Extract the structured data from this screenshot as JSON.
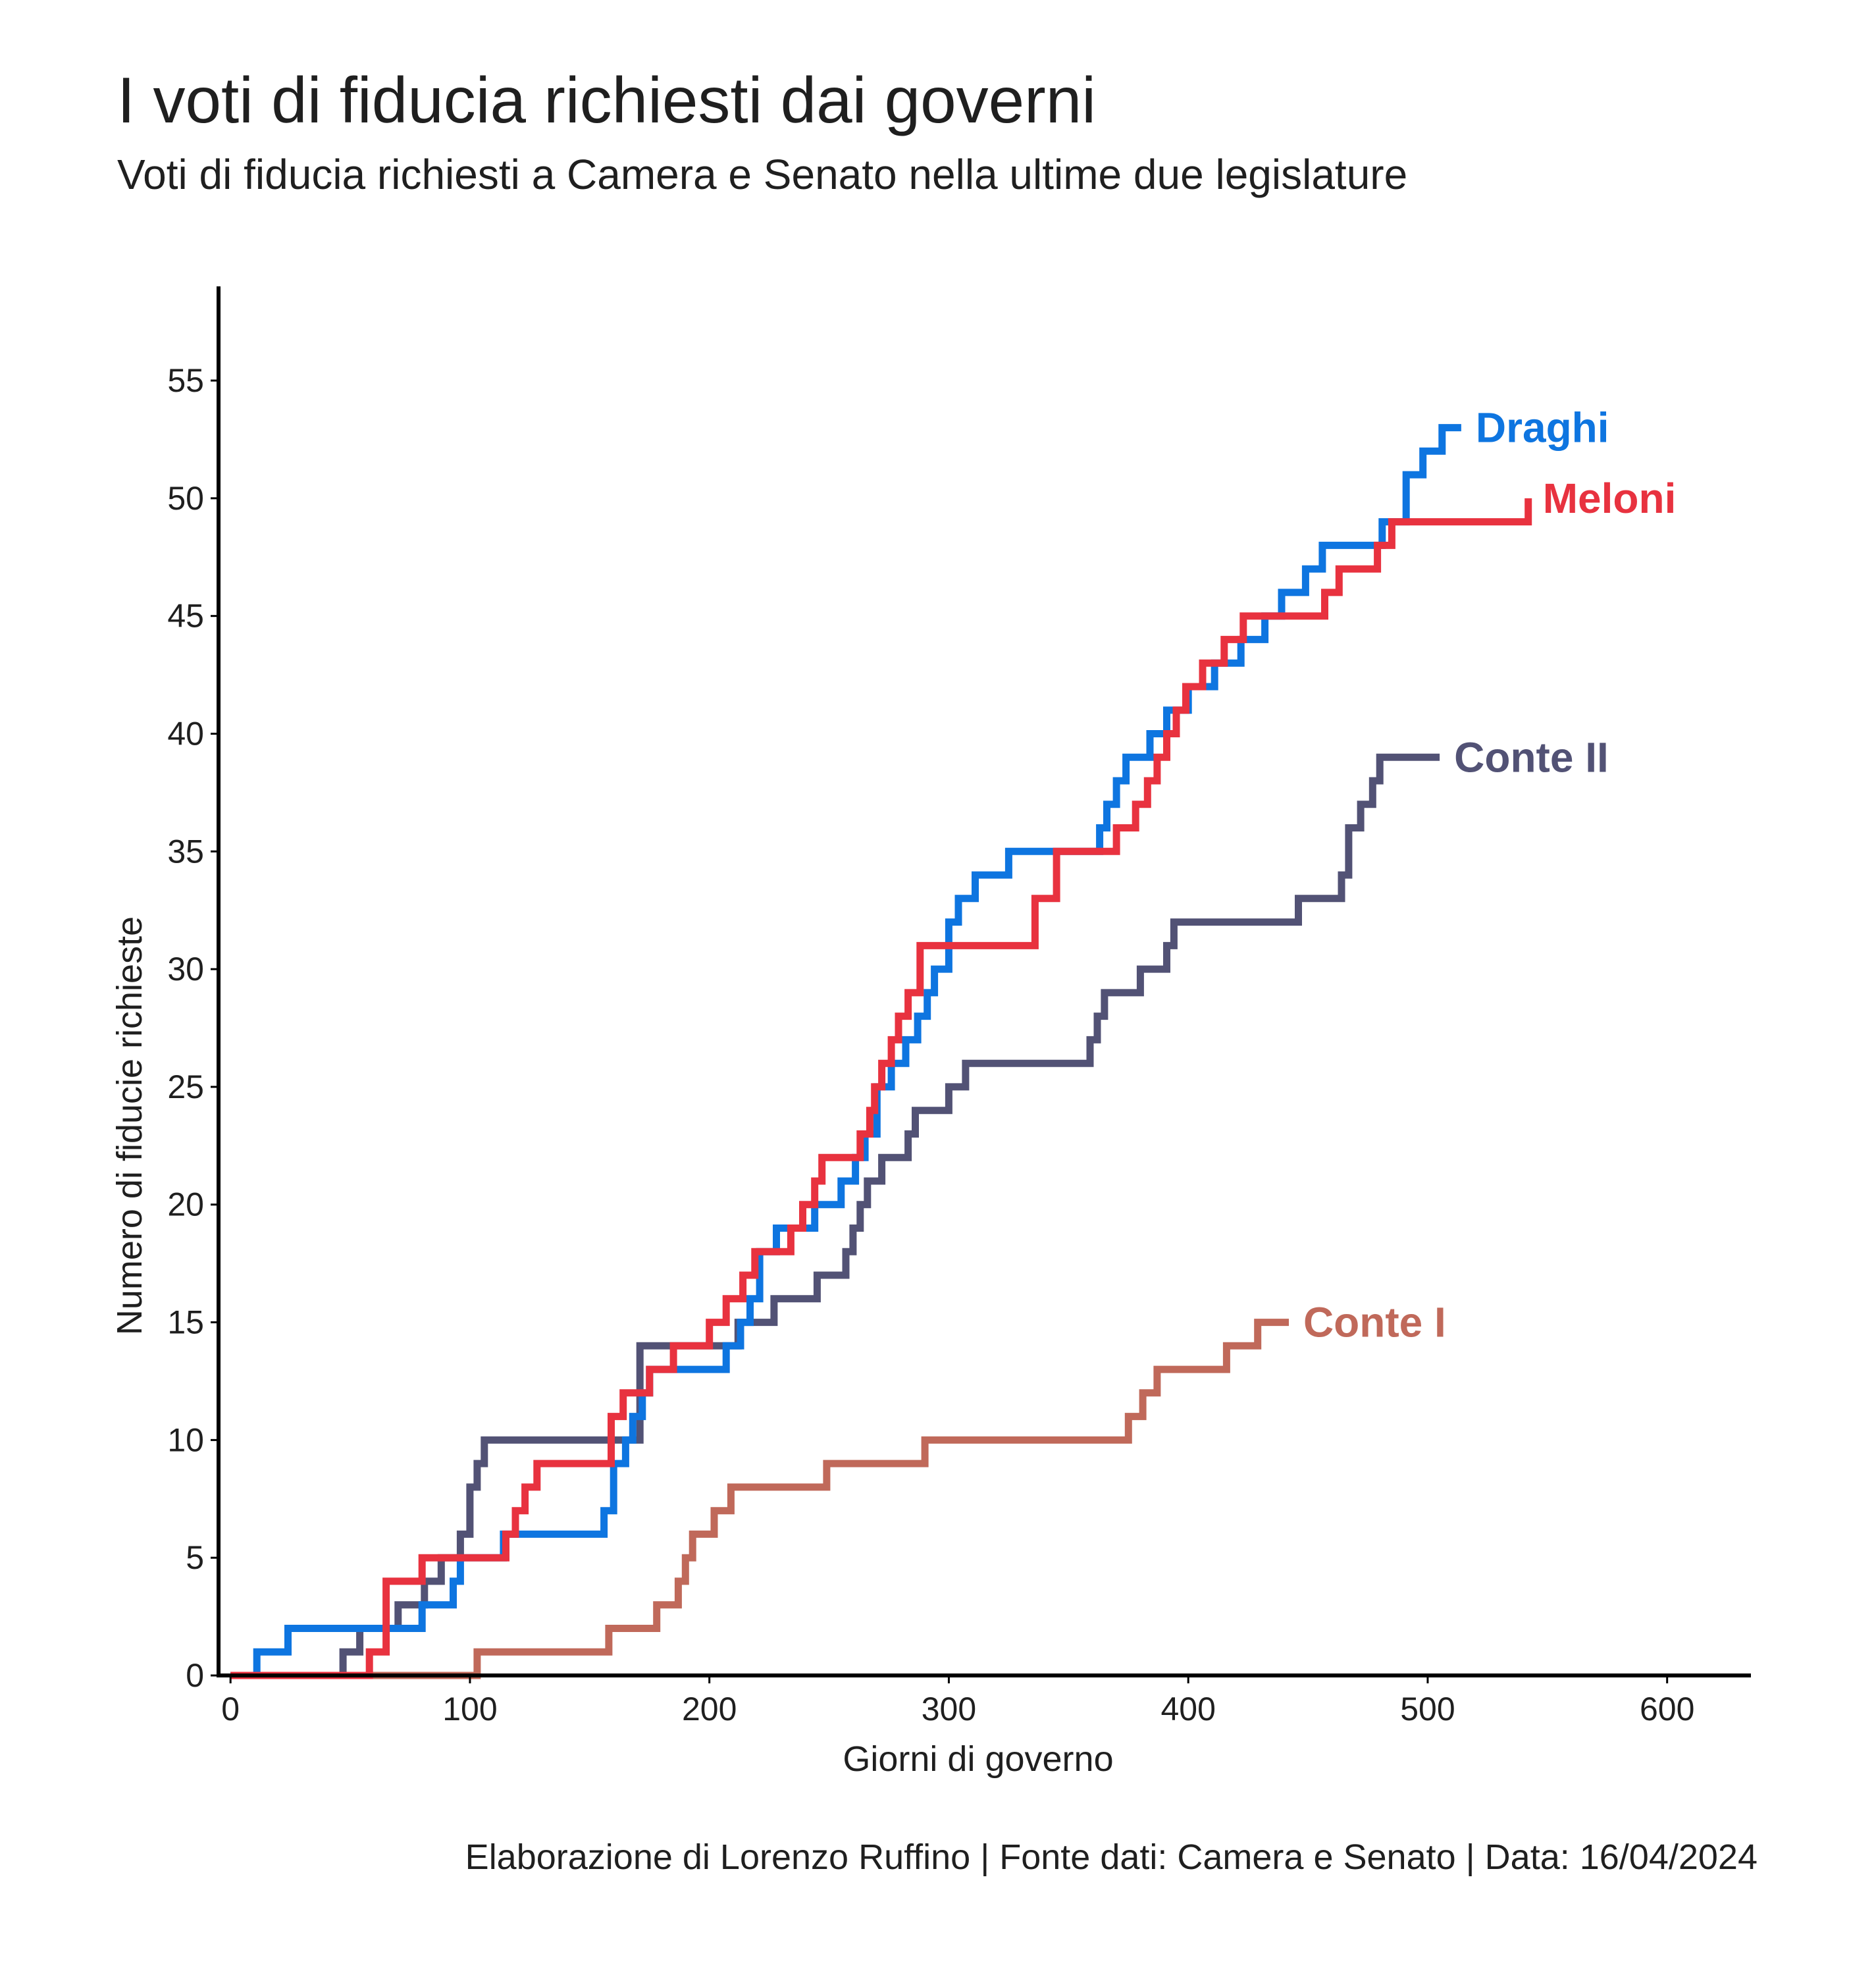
{
  "chart_data": {
    "type": "line",
    "title": "I voti di fiducia richiesti dai governi",
    "subtitle": "Voti di fiducia richiesti a Camera e Senato nella ultime due legislature",
    "xlabel": "Giorni di governo",
    "ylabel": "Numero di fiducie richieste",
    "xlim": [
      -5,
      635
    ],
    "ylim": [
      0,
      59
    ],
    "x_ticks": [
      0,
      100,
      200,
      300,
      400,
      500,
      600
    ],
    "y_ticks": [
      0,
      5,
      10,
      15,
      20,
      25,
      30,
      35,
      40,
      45,
      50,
      55
    ],
    "grid": false,
    "legend": "direct labels at line ends",
    "caption": "Elaborazione di Lorenzo Ruffino | Fonte dati: Camera e Senato | Data: 16/04/2024",
    "series": [
      {
        "name": "Conte I",
        "color": "#c0695a",
        "x": [
          0,
          102,
          103,
          157,
          158,
          177,
          178,
          186,
          187,
          189,
          190,
          192,
          193,
          201,
          202,
          203,
          204,
          208,
          209,
          248,
          249,
          289,
          290,
          374,
          375,
          380,
          381,
          386,
          387,
          391,
          392,
          415,
          416,
          428,
          429,
          442
        ],
        "y": [
          0,
          0,
          1,
          1,
          2,
          2,
          3,
          3,
          4,
          4,
          5,
          5,
          6,
          6,
          7,
          7,
          7,
          7,
          8,
          8,
          9,
          9,
          10,
          10,
          11,
          11,
          12,
          12,
          13,
          13,
          13,
          13,
          14,
          14,
          15,
          15
        ]
      },
      {
        "name": "Conte II",
        "color": "#525275",
        "x": [
          46,
          47,
          53,
          54,
          57,
          58,
          69,
          70,
          71,
          72,
          80,
          81,
          87,
          88,
          95,
          96,
          99,
          100,
          102,
          103,
          105,
          106,
          170,
          171,
          211,
          212,
          226,
          227,
          244,
          245,
          256,
          257,
          259,
          260,
          262,
          263,
          265,
          266,
          268,
          269,
          271,
          272,
          282,
          283,
          285,
          286,
          289,
          290,
          299,
          300,
          306,
          307,
          358,
          359,
          361,
          362,
          364,
          365,
          379,
          380,
          390,
          391,
          393,
          394,
          445,
          446,
          463,
          464,
          466,
          467,
          471,
          472,
          476,
          477,
          479,
          480,
          505
        ],
        "y": [
          0,
          1,
          1,
          2,
          2,
          2,
          2,
          3,
          3,
          3,
          3,
          4,
          4,
          5,
          5,
          6,
          6,
          8,
          8,
          9,
          9,
          10,
          10,
          14,
          14,
          15,
          15,
          16,
          16,
          17,
          17,
          18,
          18,
          19,
          19,
          20,
          20,
          21,
          21,
          21,
          21,
          22,
          22,
          23,
          23,
          24,
          24,
          24,
          24,
          25,
          25,
          26,
          26,
          27,
          27,
          28,
          28,
          29,
          29,
          30,
          30,
          31,
          31,
          32,
          32,
          33,
          33,
          34,
          34,
          36,
          36,
          37,
          37,
          38,
          38,
          39,
          39
        ]
      },
      {
        "name": "Draghi",
        "color": "#0e75e0",
        "x": [
          0,
          10,
          11,
          23,
          24,
          55,
          56,
          74,
          75,
          79,
          80,
          82,
          83,
          92,
          93,
          95,
          96,
          113,
          114,
          148,
          149,
          155,
          156,
          159,
          160,
          164,
          165,
          167,
          168,
          171,
          172,
          174,
          175,
          206,
          207,
          212,
          213,
          216,
          217,
          220,
          221,
          227,
          228,
          243,
          244,
          254,
          255,
          260,
          261,
          264,
          265,
          269,
          270,
          275,
          276,
          281,
          282,
          286,
          287,
          290,
          291,
          293,
          294,
          299,
          300,
          303,
          304,
          307,
          308,
          310,
          311,
          324,
          325,
          362,
          363,
          365,
          366,
          369,
          370,
          373,
          374,
          383,
          384,
          390,
          391,
          399,
          400,
          410,
          411,
          421,
          422,
          431,
          432,
          438,
          439,
          448,
          449,
          455,
          456,
          474,
          475,
          480,
          481,
          490,
          491,
          497,
          498,
          505,
          506,
          513,
          514
        ],
        "y": [
          0,
          0,
          1,
          1,
          2,
          2,
          2,
          2,
          2,
          2,
          3,
          3,
          3,
          3,
          4,
          4,
          5,
          5,
          6,
          6,
          6,
          6,
          7,
          7,
          9,
          9,
          10,
          10,
          11,
          11,
          12,
          12,
          13,
          13,
          14,
          14,
          15,
          15,
          16,
          16,
          18,
          18,
          19,
          19,
          20,
          20,
          21,
          21,
          22,
          22,
          23,
          23,
          25,
          25,
          26,
          26,
          27,
          27,
          28,
          28,
          29,
          29,
          30,
          30,
          32,
          32,
          33,
          33,
          33,
          33,
          34,
          34,
          35,
          35,
          36,
          36,
          37,
          37,
          38,
          38,
          39,
          39,
          40,
          40,
          41,
          41,
          42,
          42,
          43,
          43,
          44,
          44,
          45,
          45,
          46,
          46,
          47,
          47,
          48,
          48,
          48,
          48,
          49,
          49,
          51,
          51,
          52,
          52,
          53,
          53,
          53
        ]
      },
      {
        "name": "Meloni",
        "color": "#e8323f",
        "x": [
          0,
          57,
          58,
          64,
          65,
          79,
          80,
          114,
          115,
          118,
          119,
          122,
          123,
          127,
          128,
          158,
          159,
          163,
          164,
          174,
          175,
          184,
          185,
          199,
          200,
          206,
          207,
          213,
          214,
          218,
          219,
          224,
          225,
          233,
          234,
          238,
          239,
          243,
          244,
          246,
          247,
          262,
          263,
          266,
          267,
          268,
          269,
          271,
          272,
          275,
          276,
          278,
          279,
          282,
          283,
          287,
          288,
          335,
          336,
          344,
          345,
          369,
          370,
          377,
          378,
          382,
          383,
          386,
          387,
          390,
          391,
          394,
          395,
          398,
          399,
          405,
          406,
          414,
          415,
          422,
          423,
          456,
          457,
          462,
          463,
          478,
          479,
          484,
          485,
          541,
          542
        ],
        "y": [
          0,
          0,
          1,
          1,
          4,
          4,
          5,
          5,
          6,
          6,
          7,
          7,
          8,
          8,
          9,
          9,
          11,
          11,
          12,
          12,
          13,
          13,
          14,
          14,
          15,
          15,
          16,
          16,
          17,
          17,
          18,
          18,
          18,
          18,
          19,
          19,
          20,
          20,
          21,
          21,
          22,
          22,
          23,
          23,
          24,
          24,
          25,
          25,
          26,
          26,
          27,
          27,
          28,
          28,
          29,
          29,
          31,
          31,
          33,
          33,
          35,
          35,
          36,
          36,
          37,
          37,
          38,
          38,
          39,
          39,
          40,
          40,
          41,
          41,
          42,
          42,
          43,
          43,
          44,
          44,
          45,
          45,
          46,
          46,
          47,
          47,
          48,
          48,
          49,
          49,
          50
        ]
      }
    ]
  }
}
